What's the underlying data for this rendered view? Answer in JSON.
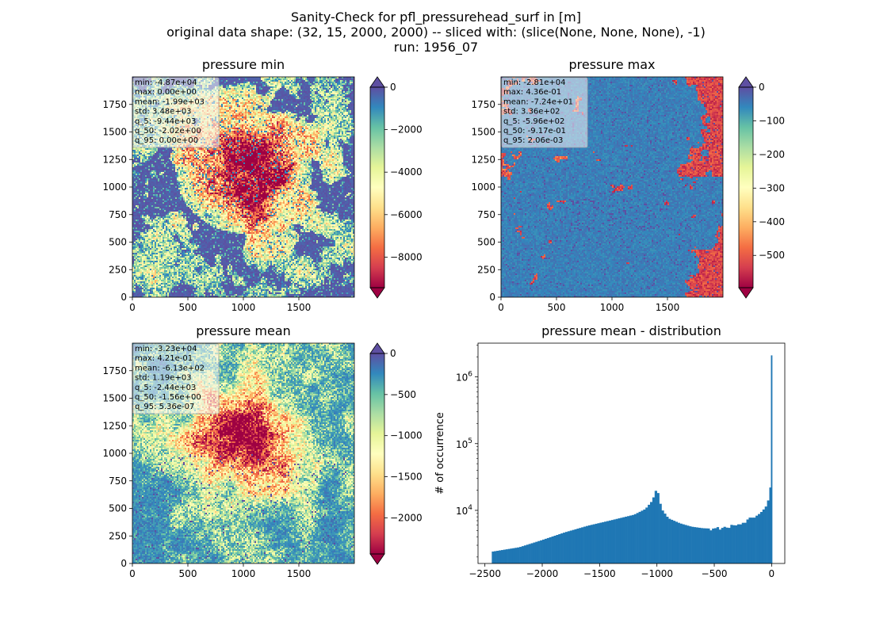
{
  "title": {
    "line1": "Sanity-Check for pfl_pressurehead_surf in [m]",
    "line2": "original data shape: (32, 15, 2000, 2000) -- sliced with: (slice(None, None, None), -1)",
    "line3": "run: 1956_07"
  },
  "chart_data": [
    {
      "type": "heatmap",
      "title": "pressure min",
      "colormap": "Spectral",
      "xlim": [
        0,
        2000
      ],
      "ylim": [
        0,
        2000
      ],
      "xticks": [
        0,
        500,
        1000,
        1500
      ],
      "yticks": [
        0,
        250,
        500,
        750,
        1000,
        1250,
        1500,
        1750
      ],
      "colorbar": {
        "range": [
          -9440,
          0
        ],
        "ticks": [
          0,
          -2000,
          -4000,
          -6000,
          -8000
        ],
        "extend": "both"
      },
      "stats": [
        "min: -4.87e+04",
        "max: 0.00e+00",
        "mean: -1.99e+03",
        "std: 3.48e+03",
        "q_5: -9.44e+03",
        "q_50: -2.02e+00",
        "q_95: 0.00e+00"
      ]
    },
    {
      "type": "heatmap",
      "title": "pressure max",
      "colormap": "Spectral",
      "xlim": [
        0,
        2000
      ],
      "ylim": [
        0,
        2000
      ],
      "xticks": [
        0,
        500,
        1000,
        1500
      ],
      "yticks": [
        0,
        250,
        500,
        750,
        1000,
        1250,
        1500,
        1750
      ],
      "colorbar": {
        "range": [
          -596,
          0
        ],
        "ticks": [
          0,
          -100,
          -200,
          -300,
          -400,
          -500
        ],
        "extend": "both"
      },
      "stats": [
        "min: -2.81e+04",
        "max: 4.36e-01",
        "mean: -7.24e+01",
        "std: 3.36e+02",
        "q_5: -5.96e+02",
        "q_50: -9.17e-01",
        "q_95: 2.06e-03"
      ]
    },
    {
      "type": "heatmap",
      "title": "pressure mean",
      "colormap": "Spectral",
      "xlim": [
        0,
        2000
      ],
      "ylim": [
        0,
        2000
      ],
      "xticks": [
        0,
        500,
        1000,
        1500
      ],
      "yticks": [
        0,
        250,
        500,
        750,
        1000,
        1250,
        1500,
        1750
      ],
      "colorbar": {
        "range": [
          -2440,
          0
        ],
        "ticks": [
          0,
          -500,
          -1000,
          -1500,
          -2000
        ],
        "extend": "both"
      },
      "stats": [
        "min: -3.23e+04",
        "max: 4.21e-01",
        "mean: -6.13e+02",
        "std: 1.19e+03",
        "q_5: -2.44e+03",
        "q_50: -1.56e+00",
        "q_95: 5.36e-07"
      ]
    },
    {
      "type": "bar",
      "title": "pressure mean - distribution",
      "ylabel": "# of occurrence",
      "yscale": "log",
      "xlim": [
        -2560,
        115
      ],
      "ylim": [
        1600,
        3200000
      ],
      "xticks": [
        -2500,
        -2000,
        -1500,
        -1000,
        -500,
        0
      ],
      "xtick_labels": [
        "−2500",
        "−2000",
        "−1500",
        "−1000",
        "−500",
        "0"
      ],
      "yticks": [
        10000,
        100000,
        1000000
      ],
      "ytick_labels": [
        "10^4",
        "10^5",
        "10^6"
      ],
      "color": "#1f77b4",
      "bin_width": 20,
      "x": [
        -2440,
        -2200,
        -2000,
        -1800,
        -1600,
        -1400,
        -1200,
        -1100,
        -1040,
        -1020,
        -1000,
        -980,
        -960,
        -900,
        -800,
        -700,
        -600,
        -500,
        -400,
        -300,
        -200,
        -120,
        -80,
        -40,
        -20,
        -10,
        0
      ],
      "values": [
        2400,
        2800,
        3600,
        4700,
        5900,
        7100,
        8600,
        10500,
        14000,
        17500,
        22000,
        15000,
        10500,
        7600,
        6400,
        5700,
        5400,
        5300,
        5600,
        5900,
        7200,
        8500,
        9800,
        12000,
        16500,
        22000,
        2100000
      ]
    }
  ]
}
